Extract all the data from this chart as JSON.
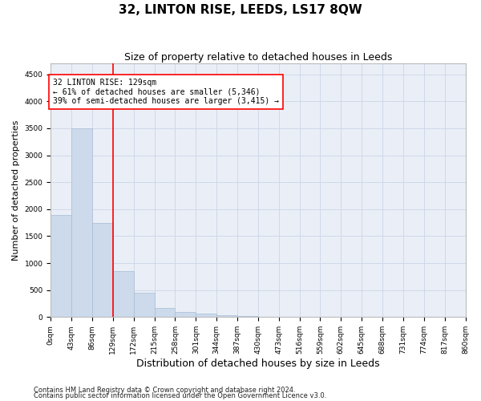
{
  "title": "32, LINTON RISE, LEEDS, LS17 8QW",
  "subtitle": "Size of property relative to detached houses in Leeds",
  "xlabel": "Distribution of detached houses by size in Leeds",
  "ylabel": "Number of detached properties",
  "bar_color": "#ccdaec",
  "bar_edge_color": "#a8bdd4",
  "vline_x": 129,
  "vline_color": "red",
  "annotation_text": "32 LINTON RISE: 129sqm\n← 61% of detached houses are smaller (5,346)\n39% of semi-detached houses are larger (3,415) →",
  "bin_edges": [
    0,
    43,
    86,
    129,
    172,
    215,
    258,
    301,
    344,
    387,
    430,
    473,
    516,
    559,
    602,
    645,
    688,
    731,
    774,
    817,
    860
  ],
  "bar_heights": [
    1900,
    3500,
    1750,
    850,
    450,
    175,
    100,
    65,
    40,
    20,
    10,
    5,
    2,
    1,
    0,
    0,
    0,
    0,
    0,
    0
  ],
  "ylim": [
    0,
    4700
  ],
  "yticks": [
    0,
    500,
    1000,
    1500,
    2000,
    2500,
    3000,
    3500,
    4000,
    4500
  ],
  "grid_color": "#d0d8e8",
  "background_color": "#eaeff7",
  "footer_line1": "Contains HM Land Registry data © Crown copyright and database right 2024.",
  "footer_line2": "Contains public sector information licensed under the Open Government Licence v3.0.",
  "title_fontsize": 11,
  "subtitle_fontsize": 9,
  "tick_label_fontsize": 6.5,
  "ylabel_fontsize": 8,
  "xlabel_fontsize": 9,
  "annotation_fontsize": 7,
  "footer_fontsize": 6
}
